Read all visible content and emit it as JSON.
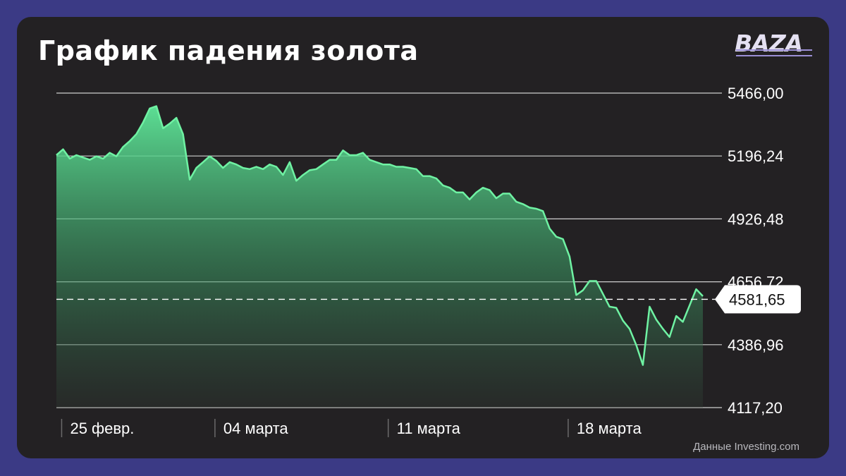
{
  "title": "График падения золота",
  "logo": "BAZA",
  "source": "Данные Investing.com",
  "colors": {
    "background": "#3b3a85",
    "card": "#232123",
    "line": "#6ff2a3",
    "area_top": "#5fe89a",
    "grid": "#cfcfcf",
    "text": "#ffffff"
  },
  "chart_data": {
    "type": "area",
    "title": "График падения золота",
    "xlabel": "",
    "ylabel": "",
    "ylim": [
      4117.2,
      5466.0
    ],
    "yticks": [
      "5466,00",
      "5196,24",
      "4926,48",
      "4656,72",
      "4386,96",
      "4117,20"
    ],
    "ytick_values": [
      5466.0,
      5196.24,
      4926.48,
      4656.72,
      4386.96,
      4117.2
    ],
    "xticks": [
      "25 февр.",
      "04 марта",
      "11 марта",
      "18 марта"
    ],
    "xtick_index": [
      1,
      24,
      50,
      77
    ],
    "current_value": 4581.65,
    "current_label": "4581,65",
    "grid": true,
    "series": [
      {
        "values": [
          5200,
          5225,
          5185,
          5200,
          5190,
          5180,
          5195,
          5185,
          5210,
          5195,
          5235,
          5260,
          5290,
          5340,
          5400,
          5410,
          5315,
          5335,
          5360,
          5290,
          5095,
          5145,
          5170,
          5195,
          5175,
          5145,
          5170,
          5160,
          5145,
          5140,
          5150,
          5140,
          5160,
          5150,
          5115,
          5170,
          5090,
          5115,
          5135,
          5140,
          5160,
          5180,
          5180,
          5220,
          5200,
          5200,
          5210,
          5180,
          5170,
          5160,
          5160,
          5150,
          5150,
          5145,
          5140,
          5110,
          5110,
          5100,
          5070,
          5060,
          5040,
          5040,
          5010,
          5040,
          5060,
          5050,
          5015,
          5035,
          5035,
          5000,
          4990,
          4975,
          4970,
          4960,
          4885,
          4850,
          4840,
          4765,
          4600,
          4620,
          4660,
          4660,
          4605,
          4550,
          4545,
          4490,
          4455,
          4385,
          4300,
          4550,
          4495,
          4455,
          4420,
          4510,
          4485,
          4555,
          4625,
          4595
        ]
      }
    ]
  }
}
